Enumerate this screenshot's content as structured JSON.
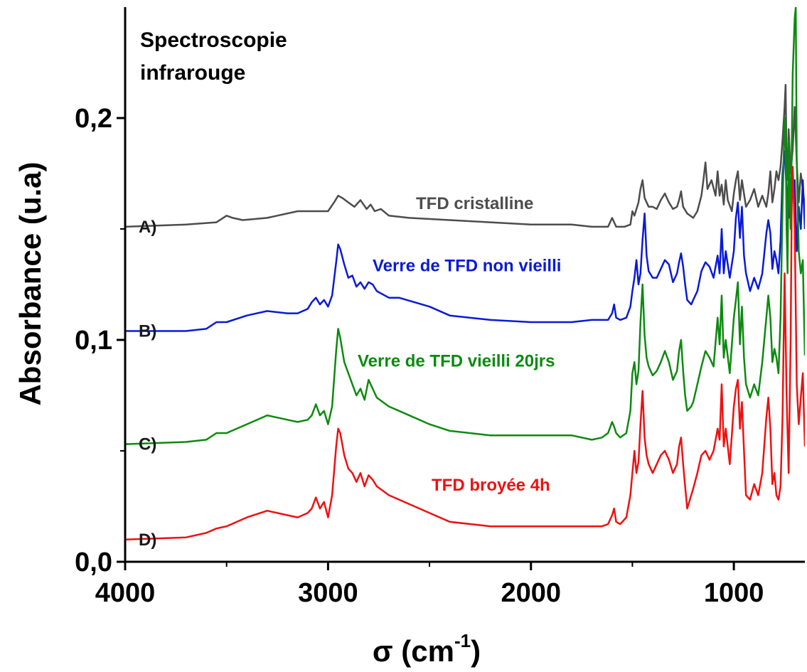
{
  "chart_data": {
    "type": "line",
    "title": [
      "Spectroscopie",
      "infrarouge"
    ],
    "xlabel": "σ (cm",
    "xlabel_sup": "-1",
    "xlabel_end": ")",
    "ylabel": "Absorbance (u.a)",
    "xlim": [
      4000,
      650
    ],
    "ylim": [
      0,
      0.25
    ],
    "xticks": [
      {
        "value": 4000,
        "label": "4000"
      },
      {
        "value": 3000,
        "label": "3000"
      },
      {
        "value": 2000,
        "label": "2000"
      },
      {
        "value": 1000,
        "label": "1000"
      }
    ],
    "xminor": [
      3500,
      2500,
      1500
    ],
    "yticks": [
      {
        "value": 0,
        "label": "0,0"
      },
      {
        "value": 0.1,
        "label": "0,1"
      },
      {
        "value": 0.2,
        "label": "0,2"
      }
    ],
    "yminor": [
      0.05,
      0.15
    ],
    "grid": false,
    "series": [
      {
        "letter": "A)",
        "name": "TFD cristalline",
        "color": "#4d4d4d",
        "x": [
          4000,
          3700,
          3550,
          3500,
          3470,
          3420,
          3300,
          3150,
          3060,
          3000,
          2970,
          2950,
          2930,
          2900,
          2870,
          2840,
          2810,
          2790,
          2770,
          2740,
          2700,
          2600,
          2400,
          2200,
          2000,
          1800,
          1700,
          1620,
          1600,
          1580,
          1540,
          1510,
          1500,
          1490,
          1470,
          1460,
          1450,
          1440,
          1420,
          1400,
          1380,
          1360,
          1340,
          1320,
          1300,
          1280,
          1270,
          1260,
          1250,
          1230,
          1200,
          1180,
          1160,
          1150,
          1140,
          1130,
          1110,
          1090,
          1080,
          1070,
          1060,
          1050,
          1040,
          1030,
          1010,
          1000,
          990,
          980,
          970,
          960,
          940,
          920,
          900,
          880,
          860,
          840,
          830,
          820,
          810,
          800,
          790,
          780,
          770,
          760,
          750,
          745,
          740,
          735,
          730,
          720,
          710,
          700,
          690,
          680,
          670,
          660,
          650
        ],
        "y": [
          0.151,
          0.152,
          0.153,
          0.156,
          0.155,
          0.154,
          0.155,
          0.158,
          0.158,
          0.158,
          0.162,
          0.165,
          0.164,
          0.162,
          0.16,
          0.163,
          0.159,
          0.161,
          0.158,
          0.159,
          0.156,
          0.155,
          0.154,
          0.153,
          0.152,
          0.152,
          0.151,
          0.151,
          0.155,
          0.151,
          0.151,
          0.152,
          0.158,
          0.156,
          0.162,
          0.168,
          0.172,
          0.164,
          0.16,
          0.16,
          0.159,
          0.163,
          0.166,
          0.162,
          0.159,
          0.16,
          0.163,
          0.167,
          0.16,
          0.157,
          0.155,
          0.158,
          0.165,
          0.172,
          0.18,
          0.168,
          0.172,
          0.165,
          0.176,
          0.165,
          0.17,
          0.161,
          0.172,
          0.163,
          0.158,
          0.166,
          0.172,
          0.176,
          0.163,
          0.172,
          0.16,
          0.163,
          0.168,
          0.16,
          0.165,
          0.16,
          0.166,
          0.176,
          0.162,
          0.168,
          0.176,
          0.172,
          0.178,
          0.19,
          0.205,
          0.215,
          0.18,
          0.172,
          0.195,
          0.175,
          0.186,
          0.205,
          0.18,
          0.162,
          0.175,
          0.168,
          0.16
        ]
      },
      {
        "letter": "B)",
        "name": "Verre de TFD non vieilli",
        "color": "#0a1ad8",
        "x": [
          4000,
          3700,
          3600,
          3550,
          3500,
          3400,
          3300,
          3200,
          3150,
          3100,
          3080,
          3060,
          3040,
          3020,
          3000,
          2980,
          2960,
          2950,
          2940,
          2920,
          2900,
          2880,
          2860,
          2840,
          2820,
          2800,
          2780,
          2760,
          2700,
          2650,
          2500,
          2400,
          2200,
          2000,
          1800,
          1700,
          1650,
          1620,
          1600,
          1590,
          1580,
          1560,
          1530,
          1510,
          1500,
          1490,
          1480,
          1470,
          1460,
          1450,
          1440,
          1430,
          1420,
          1400,
          1380,
          1360,
          1340,
          1320,
          1300,
          1280,
          1270,
          1260,
          1250,
          1240,
          1230,
          1210,
          1200,
          1180,
          1160,
          1140,
          1120,
          1100,
          1080,
          1070,
          1060,
          1050,
          1040,
          1020,
          1000,
          990,
          980,
          970,
          960,
          950,
          940,
          920,
          900,
          880,
          860,
          840,
          830,
          820,
          810,
          800,
          790,
          780,
          770,
          760,
          750,
          740,
          730,
          720,
          710,
          700,
          690,
          680,
          670,
          660,
          650
        ],
        "y": [
          0.104,
          0.104,
          0.105,
          0.108,
          0.108,
          0.111,
          0.113,
          0.112,
          0.112,
          0.114,
          0.117,
          0.119,
          0.116,
          0.118,
          0.115,
          0.12,
          0.135,
          0.143,
          0.141,
          0.134,
          0.128,
          0.129,
          0.124,
          0.126,
          0.123,
          0.126,
          0.125,
          0.122,
          0.119,
          0.119,
          0.115,
          0.111,
          0.109,
          0.108,
          0.108,
          0.109,
          0.109,
          0.109,
          0.112,
          0.116,
          0.11,
          0.109,
          0.11,
          0.115,
          0.122,
          0.128,
          0.136,
          0.125,
          0.13,
          0.145,
          0.157,
          0.138,
          0.131,
          0.128,
          0.128,
          0.132,
          0.136,
          0.134,
          0.126,
          0.13,
          0.135,
          0.139,
          0.133,
          0.125,
          0.118,
          0.116,
          0.118,
          0.122,
          0.131,
          0.135,
          0.133,
          0.128,
          0.138,
          0.13,
          0.15,
          0.13,
          0.14,
          0.128,
          0.14,
          0.155,
          0.162,
          0.146,
          0.16,
          0.138,
          0.13,
          0.122,
          0.128,
          0.123,
          0.13,
          0.148,
          0.154,
          0.148,
          0.132,
          0.14,
          0.136,
          0.13,
          0.145,
          0.175,
          0.185,
          0.168,
          0.155,
          0.17,
          0.165,
          0.172,
          0.14,
          0.16,
          0.15,
          0.172,
          0.15
        ]
      },
      {
        "letter": "C)",
        "name": "Verre de TFD vieilli 20jrs",
        "color": "#0d8a10",
        "x": [
          4000,
          3700,
          3600,
          3550,
          3500,
          3400,
          3300,
          3200,
          3150,
          3100,
          3080,
          3060,
          3040,
          3020,
          3000,
          2980,
          2960,
          2950,
          2940,
          2920,
          2900,
          2880,
          2860,
          2840,
          2820,
          2800,
          2780,
          2760,
          2700,
          2650,
          2500,
          2400,
          2200,
          2000,
          1800,
          1700,
          1650,
          1620,
          1600,
          1590,
          1580,
          1560,
          1530,
          1510,
          1500,
          1490,
          1480,
          1470,
          1460,
          1450,
          1440,
          1430,
          1420,
          1400,
          1380,
          1360,
          1340,
          1320,
          1300,
          1280,
          1270,
          1260,
          1250,
          1240,
          1230,
          1210,
          1200,
          1180,
          1160,
          1140,
          1120,
          1100,
          1080,
          1070,
          1060,
          1050,
          1040,
          1020,
          1000,
          990,
          980,
          970,
          960,
          950,
          940,
          920,
          900,
          880,
          860,
          840,
          830,
          820,
          810,
          800,
          790,
          780,
          770,
          760,
          750,
          745,
          740,
          735,
          730,
          720,
          710,
          700,
          695,
          690,
          680,
          670,
          660,
          650
        ],
        "y": [
          0.053,
          0.054,
          0.055,
          0.058,
          0.058,
          0.062,
          0.066,
          0.064,
          0.063,
          0.064,
          0.066,
          0.071,
          0.066,
          0.068,
          0.062,
          0.07,
          0.095,
          0.105,
          0.101,
          0.09,
          0.085,
          0.08,
          0.075,
          0.078,
          0.073,
          0.082,
          0.078,
          0.074,
          0.07,
          0.068,
          0.062,
          0.059,
          0.057,
          0.057,
          0.057,
          0.055,
          0.056,
          0.058,
          0.063,
          0.061,
          0.058,
          0.056,
          0.058,
          0.068,
          0.085,
          0.09,
          0.08,
          0.086,
          0.108,
          0.125,
          0.102,
          0.092,
          0.088,
          0.084,
          0.086,
          0.09,
          0.095,
          0.09,
          0.082,
          0.086,
          0.095,
          0.1,
          0.086,
          0.075,
          0.068,
          0.07,
          0.072,
          0.08,
          0.088,
          0.095,
          0.092,
          0.088,
          0.11,
          0.098,
          0.12,
          0.092,
          0.1,
          0.085,
          0.11,
          0.118,
          0.126,
          0.098,
          0.115,
          0.092,
          0.08,
          0.074,
          0.08,
          0.075,
          0.09,
          0.11,
          0.12,
          0.11,
          0.09,
          0.096,
          0.092,
          0.085,
          0.11,
          0.16,
          0.2,
          0.195,
          0.15,
          0.13,
          0.19,
          0.15,
          0.22,
          0.245,
          0.25,
          0.18,
          0.14,
          0.13,
          0.136,
          0.093
        ]
      },
      {
        "letter": "D)",
        "name": "TFD broyée 4h",
        "color": "#ee1111",
        "x": [
          4000,
          3700,
          3600,
          3550,
          3500,
          3400,
          3300,
          3200,
          3150,
          3100,
          3080,
          3060,
          3040,
          3020,
          3000,
          2980,
          2960,
          2950,
          2940,
          2920,
          2900,
          2880,
          2860,
          2840,
          2820,
          2800,
          2780,
          2760,
          2700,
          2650,
          2500,
          2400,
          2200,
          2000,
          1800,
          1700,
          1650,
          1620,
          1600,
          1590,
          1580,
          1560,
          1530,
          1510,
          1500,
          1490,
          1480,
          1470,
          1460,
          1450,
          1440,
          1430,
          1420,
          1400,
          1380,
          1360,
          1340,
          1320,
          1300,
          1280,
          1270,
          1260,
          1250,
          1240,
          1230,
          1210,
          1200,
          1180,
          1160,
          1140,
          1120,
          1100,
          1080,
          1070,
          1060,
          1050,
          1040,
          1020,
          1000,
          990,
          980,
          970,
          960,
          950,
          940,
          920,
          900,
          880,
          860,
          840,
          830,
          820,
          810,
          800,
          790,
          780,
          770,
          760,
          750,
          740,
          730,
          720,
          715,
          710,
          700,
          690,
          680,
          670,
          660,
          650
        ],
        "y": [
          0.01,
          0.011,
          0.013,
          0.015,
          0.016,
          0.02,
          0.023,
          0.021,
          0.02,
          0.022,
          0.024,
          0.029,
          0.024,
          0.027,
          0.02,
          0.03,
          0.052,
          0.06,
          0.058,
          0.048,
          0.042,
          0.04,
          0.036,
          0.04,
          0.034,
          0.039,
          0.037,
          0.034,
          0.03,
          0.028,
          0.022,
          0.018,
          0.016,
          0.016,
          0.016,
          0.016,
          0.016,
          0.017,
          0.021,
          0.024,
          0.018,
          0.017,
          0.02,
          0.03,
          0.04,
          0.05,
          0.04,
          0.045,
          0.062,
          0.077,
          0.056,
          0.048,
          0.044,
          0.04,
          0.044,
          0.048,
          0.05,
          0.046,
          0.04,
          0.044,
          0.052,
          0.056,
          0.044,
          0.034,
          0.024,
          0.03,
          0.033,
          0.04,
          0.048,
          0.05,
          0.046,
          0.05,
          0.06,
          0.055,
          0.08,
          0.052,
          0.06,
          0.044,
          0.07,
          0.078,
          0.082,
          0.06,
          0.072,
          0.05,
          0.03,
          0.028,
          0.035,
          0.03,
          0.04,
          0.065,
          0.074,
          0.06,
          0.035,
          0.04,
          0.03,
          0.028,
          0.034,
          0.065,
          0.13,
          0.075,
          0.04,
          0.1,
          0.16,
          0.178,
          0.15,
          0.08,
          0.062,
          0.074,
          0.085,
          0.052
        ]
      }
    ]
  }
}
